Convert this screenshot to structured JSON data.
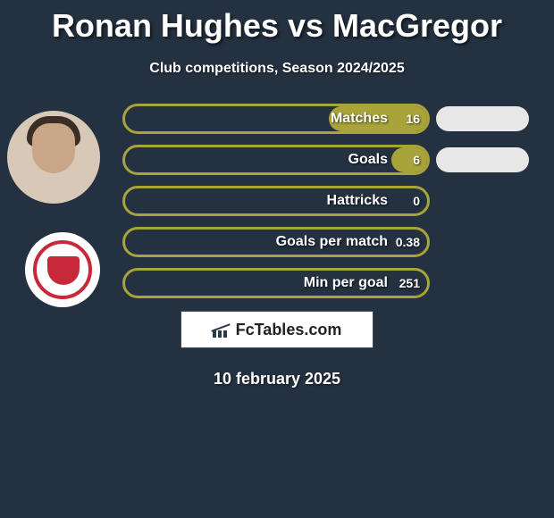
{
  "title": "Ronan Hughes vs MacGregor",
  "subtitle": "Club competitions, Season 2024/2025",
  "date": "10 february 2025",
  "logo_text": "FcTables.com",
  "colors": {
    "background": "#243141",
    "left_border": "#a8a43a",
    "left_fill": "#a8a43a",
    "right_pill": "#e8e8e8",
    "text": "#ffffff"
  },
  "left_pill_total_width": 344,
  "rows": [
    {
      "label": "Matches",
      "left_value": "16",
      "left_fill_width": 110,
      "right_visible": true
    },
    {
      "label": "Goals",
      "left_value": "6",
      "left_fill_width": 40,
      "right_visible": true
    },
    {
      "label": "Hattricks",
      "left_value": "0",
      "left_fill_width": 0,
      "right_visible": false
    },
    {
      "label": "Goals per match",
      "left_value": "0.38",
      "left_fill_width": 0,
      "right_visible": false
    },
    {
      "label": "Min per goal",
      "left_value": "251",
      "left_fill_width": 0,
      "right_visible": false
    }
  ]
}
